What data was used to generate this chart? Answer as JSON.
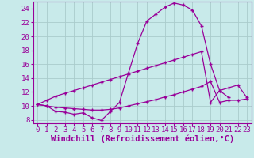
{
  "background_color": "#c8eaea",
  "grid_color": "#aacccc",
  "line_color": "#990099",
  "marker": "+",
  "xlabel": "Windchill (Refroidissement éolien,°C)",
  "xlabel_fontsize": 7.5,
  "tick_fontsize": 6.5,
  "xlim": [
    -0.5,
    23.5
  ],
  "ylim": [
    7.5,
    25.0
  ],
  "xticks": [
    0,
    1,
    2,
    3,
    4,
    5,
    6,
    7,
    8,
    9,
    10,
    11,
    12,
    13,
    14,
    15,
    16,
    17,
    18,
    19,
    20,
    21,
    22,
    23
  ],
  "yticks": [
    8,
    10,
    12,
    14,
    16,
    18,
    20,
    22,
    24
  ],
  "s1_x": [
    0,
    1,
    2,
    3,
    4,
    5,
    6,
    7,
    8,
    9,
    10,
    11,
    12,
    13,
    14,
    15,
    16,
    17,
    18,
    19,
    20,
    21
  ],
  "s1_y": [
    10.2,
    10.0,
    9.2,
    9.1,
    8.8,
    9.0,
    8.3,
    7.9,
    9.2,
    10.5,
    14.8,
    19.0,
    22.2,
    23.2,
    24.2,
    24.8,
    24.5,
    23.8,
    21.5,
    16.0,
    12.2,
    11.2
  ],
  "s2_x": [
    0,
    1,
    2,
    3,
    4,
    5,
    6,
    7,
    8,
    9,
    10,
    11,
    12,
    13,
    14,
    15,
    16,
    17,
    18,
    19,
    20,
    21,
    22,
    23
  ],
  "s2_y": [
    10.2,
    10.0,
    9.8,
    9.7,
    9.6,
    9.5,
    9.4,
    9.4,
    9.5,
    9.7,
    10.0,
    10.3,
    10.6,
    10.9,
    11.3,
    11.6,
    12.0,
    12.4,
    12.8,
    13.5,
    10.5,
    10.8,
    10.8,
    11.0
  ],
  "s3_x": [
    0,
    1,
    2,
    3,
    4,
    5,
    6,
    7,
    8,
    9,
    10,
    11,
    12,
    13,
    14,
    15,
    16,
    17,
    18,
    19,
    20,
    21,
    22,
    23
  ],
  "s3_y": [
    10.2,
    10.8,
    11.4,
    11.8,
    12.2,
    12.6,
    13.0,
    13.4,
    13.8,
    14.2,
    14.6,
    15.0,
    15.4,
    15.8,
    16.2,
    16.6,
    17.0,
    17.4,
    17.8,
    10.5,
    12.2,
    12.6,
    13.0,
    11.2
  ]
}
